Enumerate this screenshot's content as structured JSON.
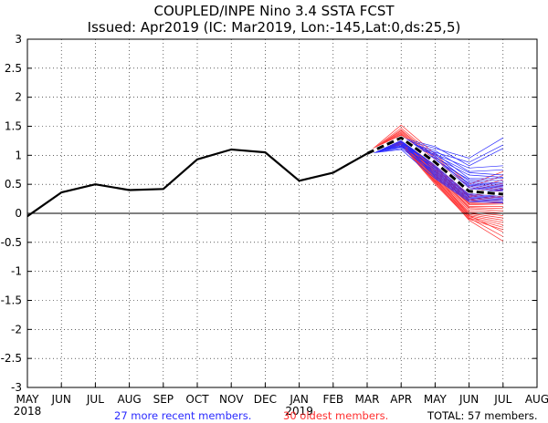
{
  "chart_data": {
    "type": "line",
    "title": "COUPLED/INPE Nino 3.4 SSTA FCST",
    "subtitle": "Issued: Apr2019 (IC: Mar2019, Lon:-145,Lat:0,ds:25,5)",
    "categories": [
      "MAY",
      "JUN",
      "JUL",
      "AUG",
      "SEP",
      "OCT",
      "NOV",
      "DEC",
      "JAN",
      "FEB",
      "MAR",
      "APR",
      "MAY",
      "JUN",
      "JUL",
      "AUG"
    ],
    "year_labels": [
      {
        "at": "MAY",
        "text": "2018"
      },
      {
        "at": "JAN",
        "text": "2019"
      }
    ],
    "ylim": [
      -3,
      3
    ],
    "yticks": [
      "3",
      "2.5",
      "2",
      "1.5",
      "1",
      "0.5",
      "0",
      "-0.5",
      "-1",
      "-1.5",
      "-2",
      "-2.5",
      "-3"
    ],
    "grid": true,
    "zero_line": true,
    "observed": {
      "name": "observed",
      "color": "#000000",
      "values": [
        -0.05,
        0.36,
        0.5,
        0.4,
        0.42,
        0.93,
        1.1,
        1.05,
        0.56,
        0.7,
        1.03
      ]
    },
    "ensemble_mean": {
      "name": "ensemble mean",
      "color": "#000000",
      "style": "dashed",
      "start_index": 10,
      "values": [
        1.03,
        1.3,
        0.88,
        0.38,
        0.33
      ]
    },
    "recent_members": {
      "count": 27,
      "color": "#2a2aff",
      "start_index": 10,
      "values": [
        [
          1.03,
          1.28,
          1.12,
          0.95,
          1.3
        ],
        [
          1.03,
          1.22,
          1.05,
          0.88,
          1.18
        ],
        [
          1.03,
          1.3,
          1.15,
          0.82,
          1.12
        ],
        [
          1.03,
          1.18,
          1.02,
          0.78,
          0.82
        ],
        [
          1.03,
          1.25,
          1.08,
          0.72,
          0.75
        ],
        [
          1.03,
          1.33,
          1.0,
          0.7,
          0.66
        ],
        [
          1.03,
          1.2,
          0.96,
          0.66,
          0.62
        ],
        [
          1.03,
          1.27,
          1.04,
          0.6,
          0.6
        ],
        [
          1.03,
          1.15,
          0.92,
          0.58,
          0.56
        ],
        [
          1.03,
          1.3,
          0.98,
          0.55,
          0.52
        ],
        [
          1.03,
          1.22,
          0.9,
          0.52,
          0.5
        ],
        [
          1.03,
          1.26,
          0.94,
          0.5,
          0.48
        ],
        [
          1.03,
          1.16,
          0.88,
          0.48,
          0.46
        ],
        [
          1.03,
          1.32,
          0.86,
          0.46,
          0.44
        ],
        [
          1.03,
          1.2,
          0.84,
          0.44,
          0.42
        ],
        [
          1.03,
          1.24,
          0.82,
          0.42,
          0.4
        ],
        [
          1.03,
          1.14,
          0.8,
          0.4,
          0.38
        ],
        [
          1.03,
          1.28,
          0.78,
          0.38,
          0.36
        ],
        [
          1.03,
          1.18,
          0.76,
          0.36,
          0.34
        ],
        [
          1.03,
          1.26,
          0.74,
          0.34,
          0.32
        ],
        [
          1.03,
          1.12,
          0.72,
          0.32,
          0.3
        ],
        [
          1.03,
          1.3,
          0.7,
          0.3,
          0.28
        ],
        [
          1.03,
          1.2,
          0.68,
          0.28,
          0.26
        ],
        [
          1.03,
          1.24,
          0.66,
          0.26,
          0.24
        ],
        [
          1.03,
          1.16,
          0.64,
          0.24,
          0.22
        ],
        [
          1.03,
          1.28,
          0.62,
          0.22,
          0.2
        ],
        [
          1.03,
          1.1,
          0.6,
          0.2,
          0.18
        ]
      ]
    },
    "oldest_members": {
      "count": 30,
      "color": "#ff3030",
      "start_index": 10,
      "values": [
        [
          1.03,
          1.52,
          1.02,
          0.5,
          0.72
        ],
        [
          1.03,
          1.47,
          0.98,
          0.45,
          0.65
        ],
        [
          1.03,
          1.44,
          0.95,
          0.4,
          0.58
        ],
        [
          1.03,
          1.42,
          0.92,
          0.38,
          0.52
        ],
        [
          1.03,
          1.4,
          0.9,
          0.35,
          0.48
        ],
        [
          1.03,
          1.38,
          0.87,
          0.32,
          0.44
        ],
        [
          1.03,
          1.36,
          0.84,
          0.3,
          0.4
        ],
        [
          1.03,
          1.35,
          0.82,
          0.27,
          0.36
        ],
        [
          1.03,
          1.34,
          0.8,
          0.24,
          0.32
        ],
        [
          1.03,
          1.32,
          0.78,
          0.22,
          0.28
        ],
        [
          1.03,
          1.31,
          0.76,
          0.2,
          0.24
        ],
        [
          1.03,
          1.3,
          0.74,
          0.18,
          0.2
        ],
        [
          1.03,
          1.29,
          0.72,
          0.15,
          0.16
        ],
        [
          1.03,
          1.28,
          0.7,
          0.12,
          0.12
        ],
        [
          1.03,
          1.27,
          0.68,
          0.1,
          0.08
        ],
        [
          1.03,
          1.26,
          0.66,
          0.08,
          0.04
        ],
        [
          1.03,
          1.25,
          0.64,
          0.05,
          0.0
        ],
        [
          1.03,
          1.24,
          0.62,
          0.02,
          -0.04
        ],
        [
          1.03,
          1.23,
          0.6,
          0.0,
          -0.08
        ],
        [
          1.03,
          1.22,
          0.58,
          -0.02,
          -0.12
        ],
        [
          1.03,
          1.21,
          0.56,
          -0.04,
          -0.16
        ],
        [
          1.03,
          1.2,
          0.54,
          -0.06,
          -0.2
        ],
        [
          1.03,
          1.19,
          0.52,
          -0.08,
          -0.24
        ],
        [
          1.03,
          1.18,
          0.5,
          -0.1,
          -0.28
        ],
        [
          1.03,
          1.36,
          0.86,
          0.28,
          0.42
        ],
        [
          1.03,
          1.33,
          0.8,
          0.22,
          0.3
        ],
        [
          1.03,
          1.3,
          0.74,
          0.16,
          0.18
        ],
        [
          1.03,
          1.27,
          0.68,
          -0.04,
          -0.32
        ],
        [
          1.03,
          1.24,
          0.6,
          -0.08,
          -0.4
        ],
        [
          1.03,
          1.2,
          0.55,
          -0.12,
          -0.48
        ]
      ]
    },
    "footer": {
      "recent_label": "27 more recent members.",
      "oldest_label": "30 oldest members.",
      "total_label": "TOTAL: 57 members."
    }
  }
}
